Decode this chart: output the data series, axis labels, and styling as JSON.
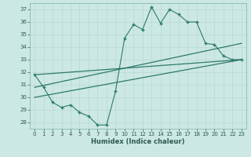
{
  "title": "",
  "xlabel": "Humidex (Indice chaleur)",
  "ylabel": "",
  "bg_color": "#cce8e4",
  "line_color": "#2d7a6a",
  "grid_color": "#b8d8d4",
  "x_ticks": [
    0,
    1,
    2,
    3,
    4,
    5,
    6,
    7,
    8,
    9,
    10,
    11,
    12,
    13,
    14,
    15,
    16,
    17,
    18,
    19,
    20,
    21,
    22,
    23
  ],
  "y_ticks": [
    28,
    29,
    30,
    31,
    32,
    33,
    34,
    35,
    36,
    37
  ],
  "ylim": [
    27.5,
    37.5
  ],
  "xlim": [
    -0.5,
    23.5
  ],
  "line1_x": [
    0,
    1,
    2,
    3,
    4,
    5,
    6,
    7,
    8,
    9,
    10,
    11,
    12,
    13,
    14,
    15,
    16,
    17,
    18,
    19,
    20,
    21,
    22,
    23
  ],
  "line1_y": [
    31.8,
    30.8,
    29.6,
    29.2,
    29.4,
    28.8,
    28.5,
    27.8,
    27.8,
    30.5,
    34.7,
    35.8,
    35.4,
    37.2,
    35.9,
    37.0,
    36.6,
    36.0,
    36.0,
    34.3,
    34.2,
    33.3,
    33.0,
    33.0
  ],
  "line2_x": [
    0,
    23
  ],
  "line2_y": [
    31.8,
    33.0
  ],
  "line3_x": [
    0,
    23
  ],
  "line3_y": [
    30.8,
    34.3
  ],
  "line4_x": [
    0,
    23
  ],
  "line4_y": [
    30.0,
    33.0
  ]
}
